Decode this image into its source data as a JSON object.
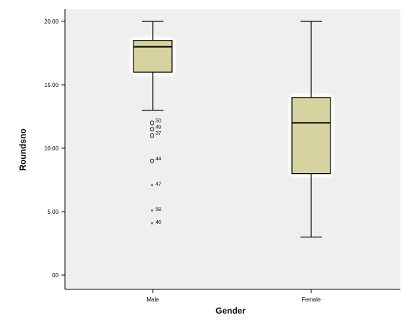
{
  "chart_data": {
    "type": "boxplot",
    "xlabel": "Gender",
    "ylabel": "Roundsno",
    "ylim": [
      0,
      20
    ],
    "y_ticks": [
      {
        "value": 0,
        "label": ".00"
      },
      {
        "value": 5,
        "label": "5.00"
      },
      {
        "value": 10,
        "label": "10.00"
      },
      {
        "value": 15,
        "label": "15.00"
      },
      {
        "value": 20,
        "label": "20.00"
      }
    ],
    "categories": [
      "Male",
      "Female"
    ],
    "boxes": [
      {
        "category": "Male",
        "whisker_low": 13,
        "q1": 16,
        "median": 18,
        "q3": 18.5,
        "whisker_high": 20,
        "outliers": [
          {
            "value": 12,
            "marker": "circle",
            "label": "50"
          },
          {
            "value": 11.5,
            "marker": "circle",
            "label": "49"
          },
          {
            "value": 11,
            "marker": "circle",
            "label": "37"
          },
          {
            "value": 9,
            "marker": "circle",
            "label": "44"
          },
          {
            "value": 7,
            "marker": "star",
            "label": "47"
          },
          {
            "value": 5,
            "marker": "star",
            "label": "58"
          },
          {
            "value": 4,
            "marker": "star",
            "label": "46"
          }
        ]
      },
      {
        "category": "Female",
        "whisker_low": 3,
        "q1": 8,
        "median": 12,
        "q3": 14,
        "whisker_high": 20,
        "outliers": []
      }
    ],
    "grid": false,
    "colors": {
      "plot_background": "#efefef",
      "box_fill": "#d6d3a0",
      "stroke": "#000000"
    }
  }
}
